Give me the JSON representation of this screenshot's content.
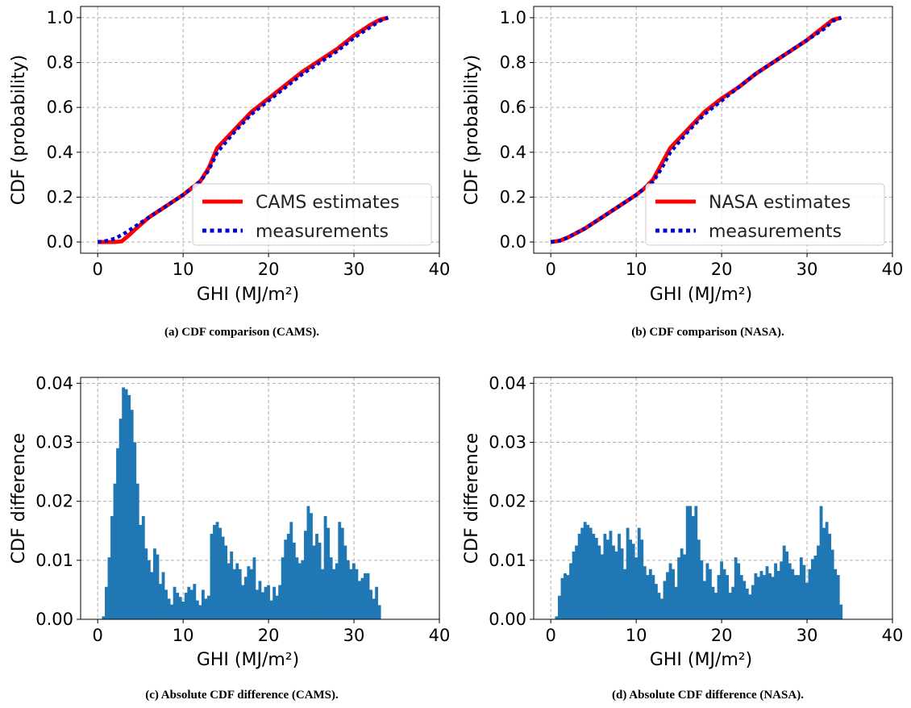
{
  "chart_data": [
    {
      "type": "line",
      "caption": "(a) CDF comparison (CAMS).",
      "xlabel": "GHI (MJ/m²)",
      "ylabel": "CDF (probability)",
      "xlim": [
        -2,
        40
      ],
      "ylim": [
        -0.05,
        1.05
      ],
      "xticks": [
        0,
        10,
        20,
        30,
        40
      ],
      "yticks": [
        0.0,
        0.2,
        0.4,
        0.6,
        0.8,
        1.0
      ],
      "grid": true,
      "legend_position": "lower-right",
      "series": [
        {
          "name": "CAMS estimates",
          "color": "#ff0000",
          "style": "solid",
          "x": [
            0,
            1,
            2,
            2.8,
            3.5,
            4.5,
            6,
            8,
            10,
            12,
            13,
            14,
            16,
            18,
            20,
            22,
            24,
            26,
            28,
            30,
            32,
            33,
            34
          ],
          "y": [
            0,
            0,
            0,
            0.003,
            0.025,
            0.06,
            0.11,
            0.16,
            0.21,
            0.27,
            0.33,
            0.42,
            0.5,
            0.58,
            0.64,
            0.7,
            0.76,
            0.81,
            0.86,
            0.92,
            0.97,
            0.99,
            1.0
          ]
        },
        {
          "name": "measurements",
          "color": "#0000cc",
          "style": "dotted",
          "x": [
            0,
            1,
            2,
            3,
            4,
            6,
            8,
            10,
            12,
            13,
            14,
            16,
            18,
            20,
            22,
            24,
            26,
            28,
            30,
            32,
            33,
            34
          ],
          "y": [
            0,
            0.005,
            0.015,
            0.035,
            0.06,
            0.11,
            0.16,
            0.21,
            0.27,
            0.32,
            0.4,
            0.49,
            0.57,
            0.63,
            0.69,
            0.75,
            0.8,
            0.85,
            0.91,
            0.96,
            0.985,
            1.0
          ]
        }
      ]
    },
    {
      "type": "line",
      "caption": "(b) CDF comparison (NASA).",
      "xlabel": "GHI (MJ/m²)",
      "ylabel": "CDF (probability)",
      "xlim": [
        -2,
        40
      ],
      "ylim": [
        -0.05,
        1.05
      ],
      "xticks": [
        0,
        10,
        20,
        30,
        40
      ],
      "yticks": [
        0.0,
        0.2,
        0.4,
        0.6,
        0.8,
        1.0
      ],
      "grid": true,
      "legend_position": "lower-right",
      "series": [
        {
          "name": "NASA estimates",
          "color": "#ff0000",
          "style": "solid",
          "x": [
            0,
            1,
            2,
            4,
            6,
            8,
            10,
            11,
            12,
            13,
            14,
            16,
            18,
            20,
            22,
            24,
            26,
            28,
            30,
            32,
            33,
            34
          ],
          "y": [
            0,
            0.005,
            0.02,
            0.06,
            0.11,
            0.16,
            0.21,
            0.24,
            0.28,
            0.35,
            0.42,
            0.5,
            0.58,
            0.64,
            0.69,
            0.75,
            0.8,
            0.85,
            0.9,
            0.96,
            0.99,
            1.0
          ]
        },
        {
          "name": "measurements",
          "color": "#0000cc",
          "style": "dotted",
          "x": [
            0,
            1,
            2,
            4,
            6,
            8,
            10,
            11,
            12,
            13,
            14,
            16,
            18,
            20,
            22,
            24,
            26,
            28,
            30,
            32,
            33,
            34
          ],
          "y": [
            0,
            0.005,
            0.02,
            0.06,
            0.11,
            0.16,
            0.21,
            0.24,
            0.27,
            0.33,
            0.4,
            0.49,
            0.57,
            0.63,
            0.69,
            0.75,
            0.8,
            0.85,
            0.9,
            0.95,
            0.985,
            1.0
          ]
        }
      ]
    },
    {
      "type": "bar",
      "caption": "(c) Absolute CDF difference (CAMS).",
      "xlabel": "GHI (MJ/m²)",
      "ylabel": "CDF difference",
      "xlim": [
        -2,
        40
      ],
      "ylim": [
        0,
        0.041
      ],
      "xticks": [
        0,
        10,
        20,
        30,
        40
      ],
      "yticks": [
        0.0,
        0.01,
        0.02,
        0.03,
        0.04
      ],
      "grid": true,
      "color": "#1f77b4",
      "bin_start": 0.5,
      "bin_width": 0.333,
      "values": [
        0.0005,
        0.0055,
        0.0105,
        0.0175,
        0.023,
        0.029,
        0.034,
        0.0393,
        0.039,
        0.038,
        0.0355,
        0.03,
        0.023,
        0.016,
        0.0175,
        0.012,
        0.01,
        0.008,
        0.012,
        0.011,
        0.006,
        0.008,
        0.005,
        0.0035,
        0.0025,
        0.0055,
        0.0045,
        0.0038,
        0.003,
        0.0045,
        0.0055,
        0.005,
        0.006,
        0.0032,
        0.0024,
        0.005,
        0.0035,
        0.004,
        0.0145,
        0.016,
        0.0165,
        0.0155,
        0.014,
        0.0125,
        0.0095,
        0.0115,
        0.0085,
        0.0095,
        0.0085,
        0.0058,
        0.0072,
        0.009,
        0.0085,
        0.0105,
        0.005,
        0.0065,
        0.0046,
        0.0055,
        0.0058,
        0.0032,
        0.0055,
        0.004,
        0.0058,
        0.0105,
        0.0135,
        0.0145,
        0.0165,
        0.013,
        0.0105,
        0.0095,
        0.01,
        0.015,
        0.0192,
        0.018,
        0.0125,
        0.0145,
        0.013,
        0.0085,
        0.0175,
        0.0155,
        0.0105,
        0.0085,
        0.0095,
        0.0165,
        0.0155,
        0.0125,
        0.01,
        0.0085,
        0.0095,
        0.0085,
        0.0065,
        0.007,
        0.0078,
        0.0078,
        0.005,
        0.0035,
        0.0055,
        0.0024
      ]
    },
    {
      "type": "bar",
      "caption": "(d) Absolute CDF difference (NASA).",
      "xlabel": "GHI (MJ/m²)",
      "ylabel": "CDF difference",
      "xlim": [
        -2,
        40
      ],
      "ylim": [
        0,
        0.041
      ],
      "xticks": [
        0,
        10,
        20,
        30,
        40
      ],
      "yticks": [
        0.0,
        0.01,
        0.02,
        0.03,
        0.04
      ],
      "grid": true,
      "color": "#1f77b4",
      "bin_start": 0.5,
      "bin_width": 0.333,
      "values": [
        0.0005,
        0.004,
        0.007,
        0.0078,
        0.0075,
        0.0095,
        0.0115,
        0.0125,
        0.0145,
        0.0155,
        0.0165,
        0.016,
        0.0155,
        0.0145,
        0.0138,
        0.0125,
        0.011,
        0.0145,
        0.0135,
        0.015,
        0.0125,
        0.0115,
        0.0145,
        0.012,
        0.0085,
        0.0155,
        0.0135,
        0.0128,
        0.0105,
        0.0155,
        0.0135,
        0.009,
        0.0075,
        0.0085,
        0.0075,
        0.006,
        0.0045,
        0.0035,
        0.0065,
        0.008,
        0.0095,
        0.0085,
        0.0055,
        0.0105,
        0.012,
        0.011,
        0.0192,
        0.0192,
        0.0175,
        0.0192,
        0.0135,
        0.01,
        0.0065,
        0.0095,
        0.0085,
        0.0055,
        0.0045,
        0.0075,
        0.0098,
        0.0085,
        0.0075,
        0.0045,
        0.0055,
        0.0105,
        0.0095,
        0.0075,
        0.0065,
        0.0052,
        0.0042,
        0.0058,
        0.0078,
        0.0072,
        0.0082,
        0.0075,
        0.009,
        0.0078,
        0.0072,
        0.0095,
        0.0082,
        0.0098,
        0.0125,
        0.0115,
        0.0095,
        0.0085,
        0.0075,
        0.0075,
        0.0105,
        0.0092,
        0.0062,
        0.0085,
        0.0102,
        0.0108,
        0.0125,
        0.0192,
        0.0155,
        0.0165,
        0.0145,
        0.0118,
        0.0085,
        0.0075,
        0.0025
      ]
    }
  ]
}
